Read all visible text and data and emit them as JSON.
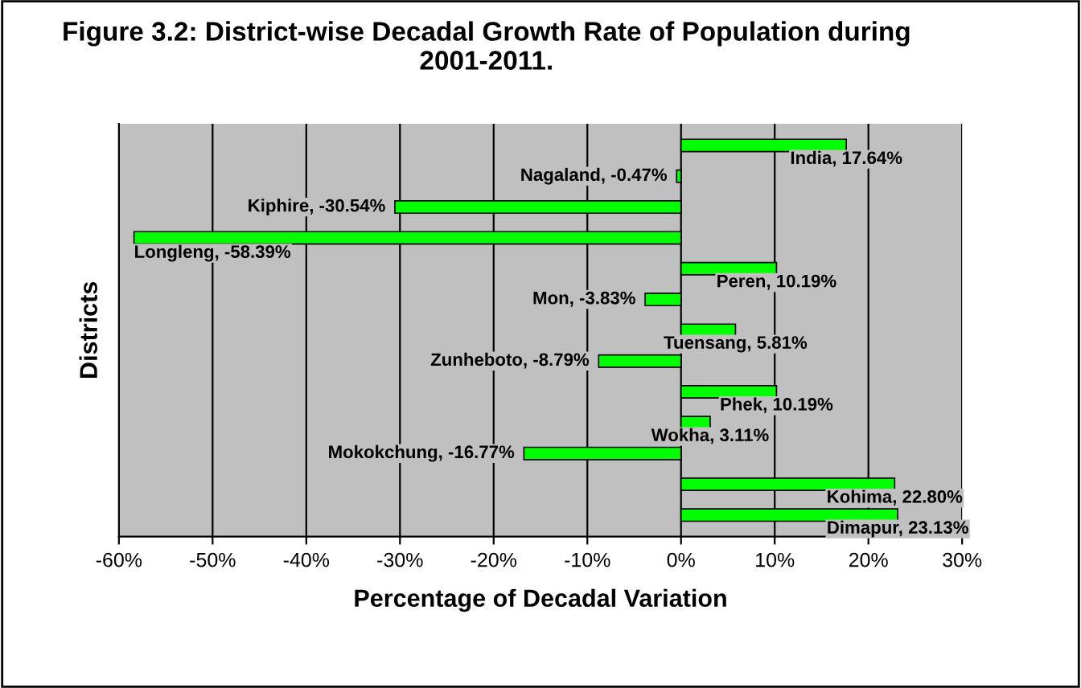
{
  "chart_data": {
    "type": "bar",
    "orientation": "horizontal",
    "title": "Figure 3.2: District-wise Decadal Growth Rate of Population during 2001-2011.",
    "xlabel": "Percentage of Decadal Variation",
    "ylabel": "Districts",
    "categories": [
      null,
      null,
      null,
      null,
      null,
      null,
      null,
      null,
      null,
      null,
      null,
      null,
      null
    ],
    "values": [
      17.64,
      -0.47,
      -30.54,
      -58.39,
      10.19,
      -3.83,
      5.81,
      -8.79,
      10.19,
      3.11,
      -16.77,
      22.8,
      23.13
    ],
    "value_labels": [
      "India, 17.64%",
      "Nagaland, -0.47%",
      "Kiphire, -30.54%",
      "Longleng, -58.39%",
      "Peren, 10.19%",
      "Mon, -3.83%",
      "Tuensang, 5.81%",
      "Zunheboto, -8.79%",
      "Phek, 10.19%",
      "Wokha, 3.11%",
      "Mokokchung, -16.77%",
      "Kohima, 22.80%",
      "Dimapur, 23.13%"
    ],
    "color": "#00ff00",
    "xlim": [
      -60,
      30
    ],
    "xticks": [
      {
        "value": -60,
        "label": "-60%"
      },
      {
        "value": -50,
        "label": "-50%"
      },
      {
        "value": -40,
        "label": "-40%"
      },
      {
        "value": -30,
        "label": "-30%"
      },
      {
        "value": -20,
        "label": "-20%"
      },
      {
        "value": -10,
        "label": "-10%"
      },
      {
        "value": 0,
        "label": "0%"
      },
      {
        "value": 10,
        "label": "10%"
      },
      {
        "value": 20,
        "label": "20%"
      },
      {
        "value": 30,
        "label": "30%"
      }
    ],
    "grid": "x",
    "legend": false
  }
}
